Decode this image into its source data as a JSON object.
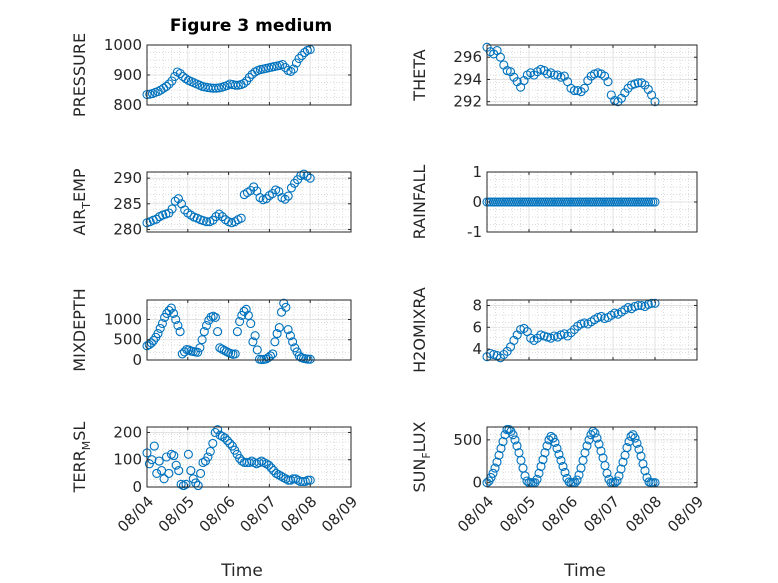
{
  "figure": {
    "title": "Figure 3 medium"
  },
  "style": {
    "marker_color": "#0072bd",
    "axis_color": "#262626",
    "grid_color": "#cfcfcf"
  },
  "chart_data": [
    {
      "type": "scatter",
      "panel": "top-left",
      "title": "Figure 3 medium",
      "ylabel": {
        "base": "PRESSURE",
        "sub": "",
        "rest": ""
      },
      "ylim": [
        800,
        1000
      ],
      "yticks": [
        "800",
        "900",
        "1000"
      ],
      "ytick_values": [
        800,
        900,
        1000
      ],
      "xlim": [
        0,
        5
      ],
      "xticks": [],
      "grid": true,
      "y": [
        835,
        836,
        838,
        842,
        845,
        850,
        856,
        862,
        870,
        880,
        895,
        910,
        905,
        895,
        888,
        882,
        878,
        874,
        870,
        866,
        862,
        860,
        858,
        857,
        856,
        856,
        857,
        859,
        862,
        865,
        870,
        868,
        866,
        866,
        868,
        872,
        880,
        892,
        902,
        910,
        915,
        918,
        920,
        922,
        924,
        926,
        928,
        930,
        932,
        935,
        925,
        915,
        912,
        920,
        940,
        955,
        965,
        975,
        982,
        985
      ]
    },
    {
      "type": "scatter",
      "panel": "top-right",
      "ylabel": {
        "base": "THETA",
        "sub": "",
        "rest": ""
      },
      "ylim": [
        291.7,
        297.1
      ],
      "yticks": [
        "292",
        "294",
        "296"
      ],
      "ytick_values": [
        292,
        294,
        296
      ],
      "xlim": [
        0,
        5
      ],
      "xticks": [],
      "grid": true,
      "y": [
        296.9,
        296.5,
        296.3,
        296.6,
        296.0,
        295.3,
        294.8,
        294.7,
        294.2,
        293.8,
        293.3,
        293.9,
        294.4,
        294.6,
        294.4,
        294.7,
        294.9,
        294.8,
        294.5,
        294.6,
        294.4,
        294.4,
        294.2,
        294.3,
        293.8,
        293.2,
        293.0,
        293.0,
        292.9,
        293.2,
        293.9,
        294.3,
        294.5,
        294.6,
        294.5,
        294.3,
        293.8,
        292.6,
        292.1,
        292.0,
        292.3,
        292.8,
        293.2,
        293.5,
        293.6,
        293.7,
        293.7,
        293.5,
        293.1,
        292.6,
        292.0
      ]
    },
    {
      "type": "scatter",
      "panel": "row2-left",
      "ylabel": {
        "base": "AIR",
        "sub": "T",
        "rest": "EMP"
      },
      "ylim": [
        279.5,
        291.2
      ],
      "yticks": [
        "280",
        "285",
        "290"
      ],
      "ytick_values": [
        280,
        285,
        290
      ],
      "xlim": [
        0,
        5
      ],
      "xticks": [],
      "grid": true,
      "y": [
        281.3,
        281.5,
        281.8,
        282.0,
        282.5,
        282.8,
        283.0,
        283.2,
        284.0,
        285.5,
        286.0,
        285.0,
        283.8,
        283.2,
        282.8,
        282.4,
        282.2,
        281.9,
        281.7,
        281.5,
        281.5,
        281.8,
        282.5,
        283.0,
        282.5,
        281.9,
        281.5,
        281.3,
        281.5,
        281.9,
        282.2,
        286.8,
        287.2,
        287.6,
        288.3,
        287.5,
        286.2,
        285.8,
        286.0,
        286.6,
        287.0,
        287.7,
        287.4,
        286.2,
        285.9,
        286.5,
        288.1,
        289.0,
        289.7,
        290.5,
        290.8,
        290.4,
        290.0
      ]
    },
    {
      "type": "scatter",
      "panel": "row2-right",
      "ylabel": {
        "base": "RAINFALL",
        "sub": "",
        "rest": ""
      },
      "ylim": [
        -1,
        1
      ],
      "yticks": [
        "-1",
        "0",
        "1"
      ],
      "ytick_values": [
        -1,
        0,
        1
      ],
      "xlim": [
        0,
        5
      ],
      "xticks": [],
      "grid": true,
      "y": [
        0,
        0,
        0,
        0,
        0,
        0,
        0,
        0,
        0,
        0,
        0,
        0,
        0,
        0,
        0,
        0,
        0,
        0,
        0,
        0,
        0,
        0,
        0,
        0,
        0,
        0,
        0,
        0,
        0,
        0,
        0,
        0,
        0,
        0,
        0,
        0,
        0,
        0,
        0,
        0,
        0,
        0,
        0,
        0,
        0,
        0,
        0,
        0,
        0,
        0,
        0,
        0,
        0,
        0,
        0,
        0,
        0,
        0,
        0,
        0,
        0,
        0,
        0,
        0,
        0,
        0,
        0,
        0,
        0,
        0,
        0,
        0,
        0,
        0,
        0,
        0,
        0,
        0,
        0,
        0
      ]
    },
    {
      "type": "scatter",
      "panel": "row3-left",
      "ylabel": {
        "base": "MIXDEPTH",
        "sub": "",
        "rest": ""
      },
      "ylim": [
        0,
        1480
      ],
      "yticks": [
        "0",
        "500",
        "1000"
      ],
      "ytick_values": [
        0,
        500,
        1000
      ],
      "xlim": [
        0,
        5
      ],
      "xticks": [],
      "grid": true,
      "y": [
        350,
        380,
        420,
        480,
        560,
        650,
        780,
        900,
        1050,
        1150,
        1220,
        1280,
        1150,
        1000,
        850,
        700,
        150,
        200,
        260,
        250,
        220,
        210,
        200,
        190,
        300,
        500,
        700,
        850,
        980,
        1060,
        1080,
        1050,
        700,
        300,
        270,
        240,
        210,
        180,
        160,
        140,
        150,
        700,
        950,
        1100,
        1200,
        1250,
        1100,
        900,
        450,
        600,
        250,
        20,
        10,
        15,
        25,
        60,
        100,
        150,
        450,
        650,
        800,
        1180,
        1400,
        1300,
        750,
        600,
        450,
        300,
        200,
        100,
        60,
        40,
        30,
        20,
        20
      ]
    },
    {
      "type": "scatter",
      "panel": "row3-right",
      "ylabel": {
        "base": "H2OMIXRA",
        "sub": "",
        "rest": ""
      },
      "ylim": [
        3,
        8.5
      ],
      "yticks": [
        "4",
        "6",
        "8"
      ],
      "ytick_values": [
        4,
        6,
        8
      ],
      "xlim": [
        0,
        5
      ],
      "xticks": [],
      "grid": true,
      "y": [
        3.3,
        3.6,
        3.5,
        3.4,
        3.2,
        3.5,
        3.8,
        4.2,
        4.8,
        5.3,
        5.8,
        5.9,
        5.6,
        5.0,
        4.8,
        5.0,
        5.3,
        5.2,
        5.1,
        5.0,
        5.2,
        5.1,
        5.3,
        5.4,
        5.2,
        5.5,
        5.8,
        6.1,
        6.3,
        6.4,
        6.3,
        6.5,
        6.7,
        6.9,
        7.0,
        6.8,
        6.9,
        7.1,
        7.3,
        7.2,
        7.4,
        7.6,
        7.8,
        7.7,
        7.9,
        8.0,
        8.0,
        7.9,
        8.1,
        8.2,
        8.2
      ]
    },
    {
      "type": "scatter",
      "panel": "bottom-left",
      "ylabel": {
        "base": "TERR",
        "sub": "M",
        "rest": "SL"
      },
      "ylim": [
        0,
        220
      ],
      "yticks": [
        "0",
        "100",
        "200"
      ],
      "ytick_values": [
        0,
        100,
        200
      ],
      "xlim": [
        0,
        5
      ],
      "xticks": [
        "08/04",
        "08/05",
        "08/06",
        "08/07",
        "08/08",
        "08/09"
      ],
      "xlabel": "Time",
      "grid": true,
      "y": [
        125,
        85,
        100,
        150,
        50,
        95,
        60,
        30,
        110,
        50,
        120,
        115,
        80,
        60,
        10,
        5,
        10,
        120,
        60,
        30,
        15,
        5,
        50,
        90,
        95,
        110,
        130,
        160,
        200,
        210,
        190,
        185,
        180,
        170,
        160,
        150,
        135,
        120,
        105,
        95,
        90,
        90,
        90,
        95,
        90,
        85,
        90,
        95,
        90,
        85,
        80,
        70,
        60,
        50,
        45,
        40,
        35,
        30,
        25,
        25,
        30,
        30,
        25,
        20,
        20,
        20,
        25,
        25
      ]
    },
    {
      "type": "scatter",
      "panel": "bottom-right",
      "ylabel": {
        "base": "SUN",
        "sub": "F",
        "rest": "LUX"
      },
      "ylim": [
        -50,
        650
      ],
      "yticks": [
        "0",
        "500"
      ],
      "ytick_values": [
        0,
        500
      ],
      "xlim": [
        0,
        5
      ],
      "xticks": [
        "08/04",
        "08/05",
        "08/06",
        "08/07",
        "08/08",
        "08/09"
      ],
      "xlabel": "Time",
      "grid": true,
      "y": [
        0,
        20,
        60,
        110,
        170,
        240,
        320,
        400,
        480,
        560,
        620,
        620,
        600,
        560,
        500,
        430,
        350,
        260,
        170,
        80,
        20,
        0,
        0,
        0,
        0,
        40,
        110,
        190,
        270,
        350,
        430,
        500,
        540,
        520,
        470,
        400,
        330,
        260,
        190,
        120,
        50,
        10,
        0,
        0,
        0,
        30,
        90,
        170,
        260,
        350,
        430,
        500,
        560,
        600,
        580,
        520,
        450,
        370,
        290,
        200,
        110,
        40,
        0,
        0,
        0,
        20,
        80,
        160,
        240,
        320,
        410,
        480,
        540,
        560,
        520,
        460,
        390,
        310,
        220,
        140,
        60,
        10,
        0,
        0,
        0
      ]
    }
  ]
}
